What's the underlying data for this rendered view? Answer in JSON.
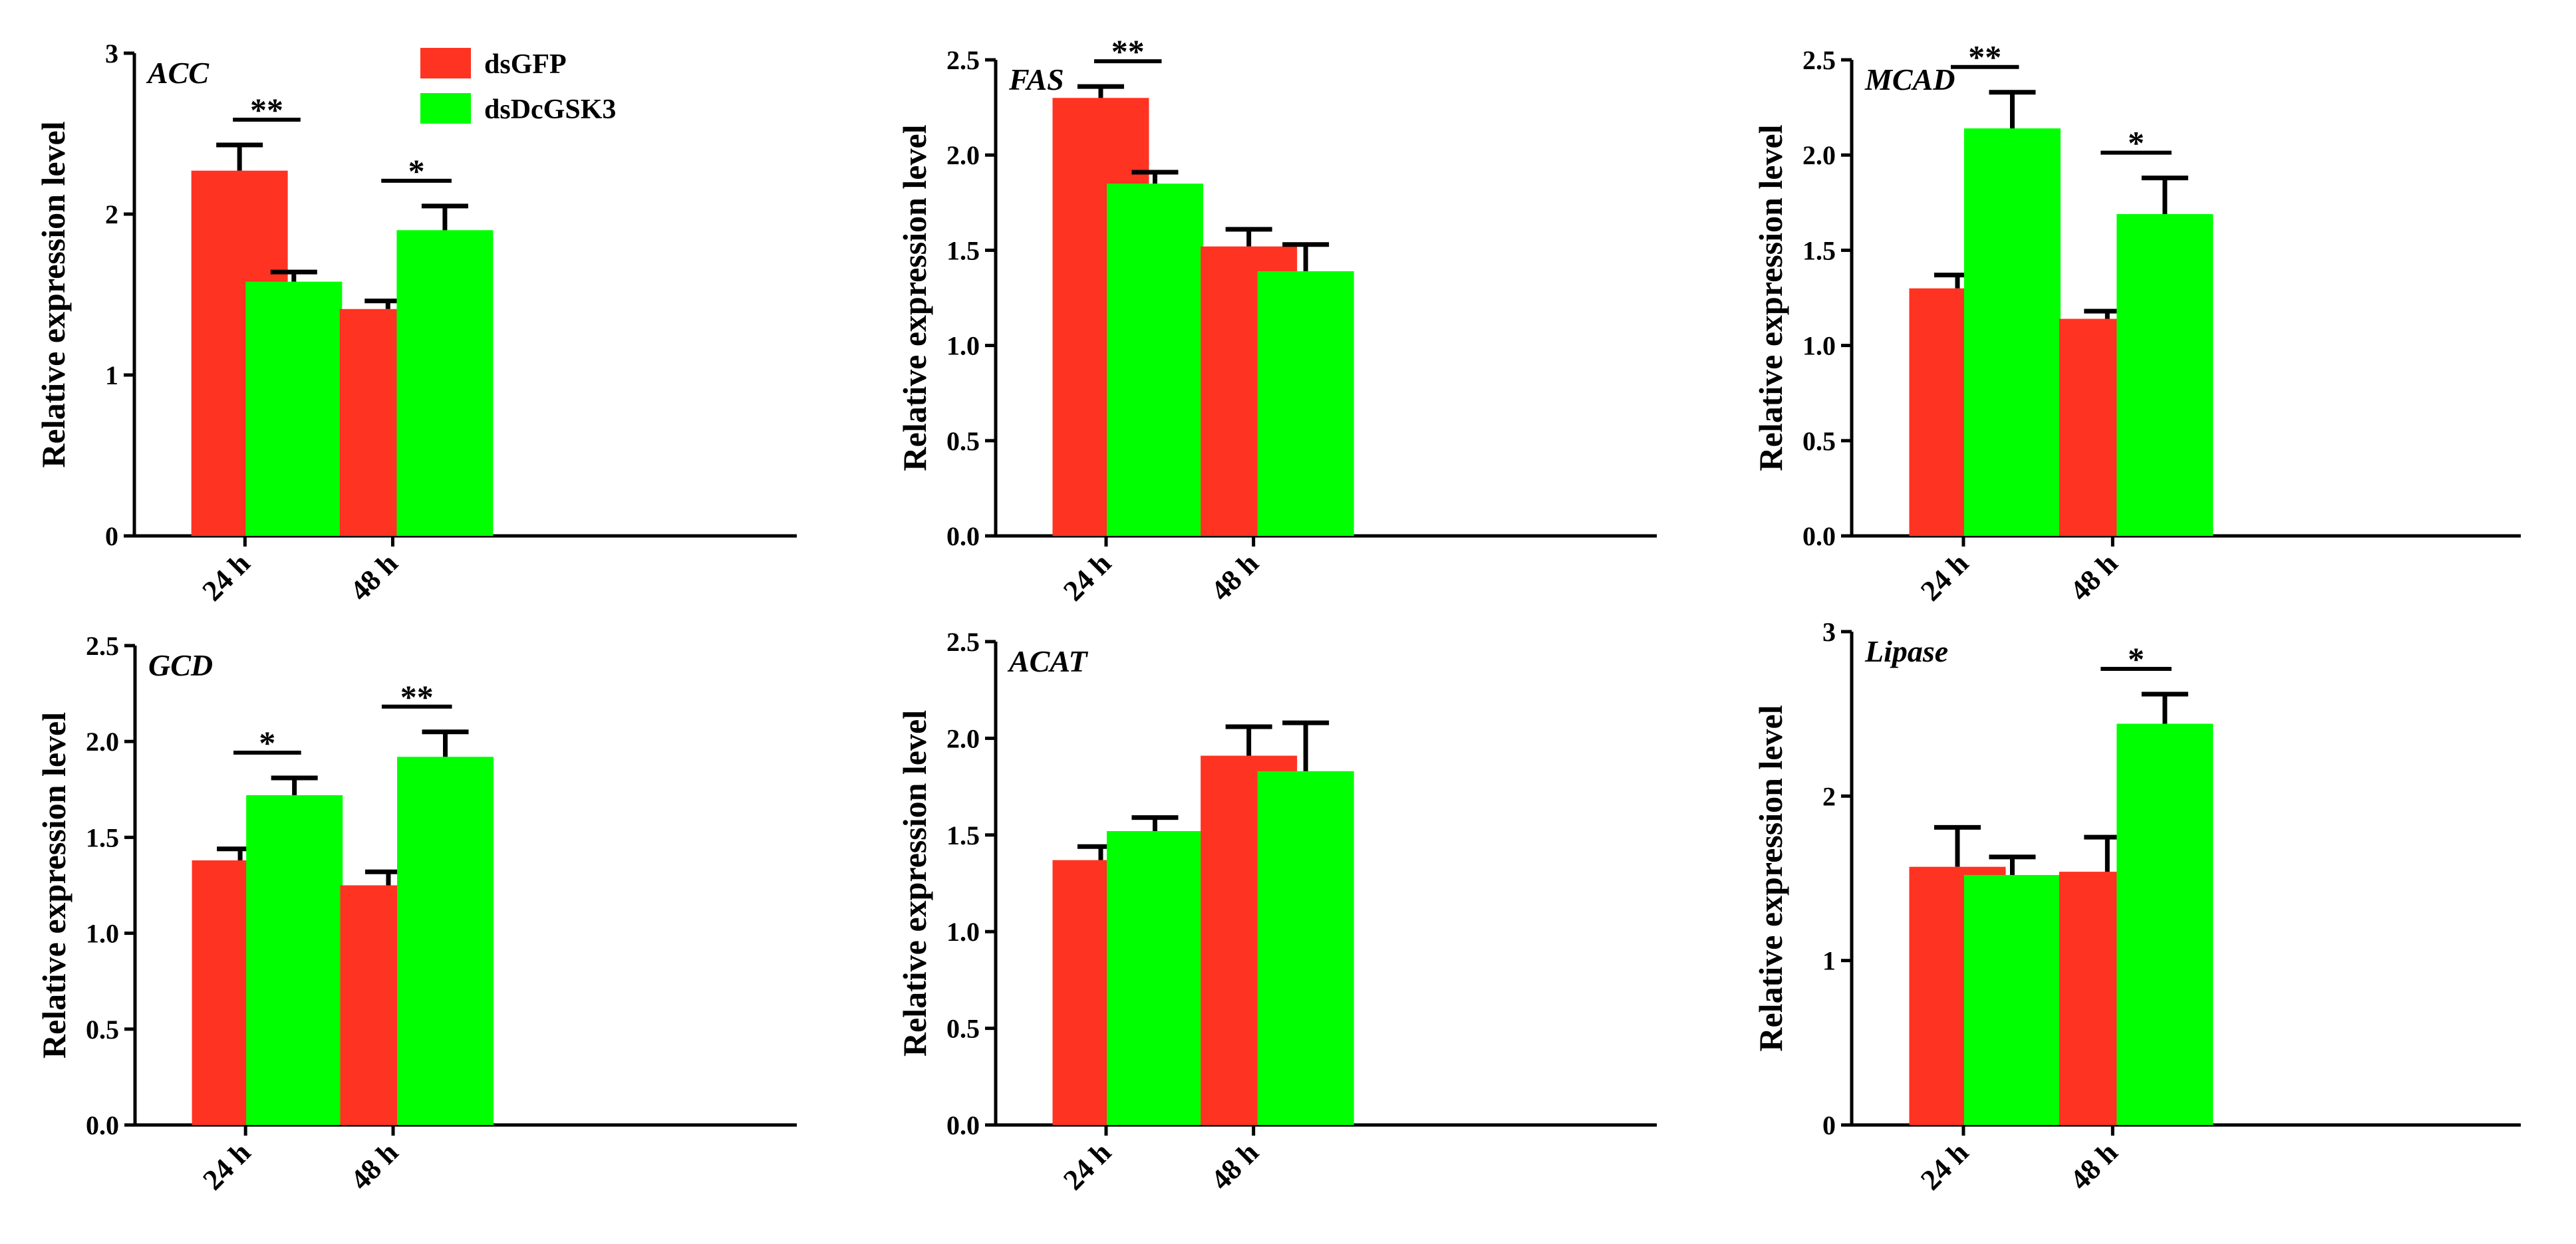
{
  "figure": {
    "legend": [
      {
        "label": "dsGFP",
        "color": "#ff3322"
      },
      {
        "label": "dsDcGSK3",
        "color": "#00ff00"
      }
    ]
  },
  "chart_data": [
    {
      "type": "bar",
      "title": "ACC",
      "ylabel": "Relative expression level",
      "categories": [
        "24 h",
        "48 h"
      ],
      "ylim": [
        0,
        3
      ],
      "yticks": [
        0,
        1,
        2,
        3
      ],
      "ytick_labels": [
        "0",
        "1",
        "2",
        "3"
      ],
      "series": [
        {
          "name": "dsGFP",
          "values": [
            2.27,
            1.41
          ],
          "errors": [
            0.16,
            0.05
          ]
        },
        {
          "name": "dsDcGSK3",
          "values": [
            1.58,
            1.9
          ],
          "errors": [
            0.06,
            0.15
          ]
        }
      ],
      "significance": [
        "**",
        "*"
      ]
    },
    {
      "type": "bar",
      "title": "FAS",
      "ylabel": "Relative expression level",
      "categories": [
        "24 h",
        "48 h"
      ],
      "ylim": [
        0,
        2.5
      ],
      "yticks": [
        0,
        0.5,
        1,
        1.5,
        2,
        2.5
      ],
      "ytick_labels": [
        "0.0",
        "0.5",
        "1.0",
        "1.5",
        "2.0",
        "2.5"
      ],
      "series": [
        {
          "name": "dsGFP",
          "values": [
            2.3,
            1.52
          ],
          "errors": [
            0.06,
            0.09
          ]
        },
        {
          "name": "dsDcGSK3",
          "values": [
            1.85,
            1.39
          ],
          "errors": [
            0.06,
            0.14
          ]
        }
      ],
      "significance": [
        "**",
        ""
      ]
    },
    {
      "type": "bar",
      "title": "MCAD",
      "ylabel": "Relative expression level",
      "categories": [
        "24 h",
        "48 h"
      ],
      "ylim": [
        0,
        2.5
      ],
      "yticks": [
        0,
        0.5,
        1,
        1.5,
        2,
        2.5
      ],
      "ytick_labels": [
        "0.0",
        "0.5",
        "1.0",
        "1.5",
        "2.0",
        "2.5"
      ],
      "series": [
        {
          "name": "dsGFP",
          "values": [
            1.3,
            1.14
          ],
          "errors": [
            0.07,
            0.04
          ]
        },
        {
          "name": "dsDcGSK3",
          "values": [
            2.14,
            1.69
          ],
          "errors": [
            0.19,
            0.19
          ]
        }
      ],
      "significance": [
        "**",
        "*"
      ]
    },
    {
      "type": "bar",
      "title": "GCD",
      "ylabel": "Relative expression level",
      "categories": [
        "24 h",
        "48 h"
      ],
      "ylim": [
        0,
        2.5
      ],
      "yticks": [
        0,
        0.5,
        1,
        1.5,
        2,
        2.5
      ],
      "ytick_labels": [
        "0.0",
        "0.5",
        "1.0",
        "1.5",
        "2.0",
        "2.5"
      ],
      "series": [
        {
          "name": "dsGFP",
          "values": [
            1.38,
            1.25
          ],
          "errors": [
            0.06,
            0.07
          ]
        },
        {
          "name": "dsDcGSK3",
          "values": [
            1.72,
            1.92
          ],
          "errors": [
            0.09,
            0.13
          ]
        }
      ],
      "significance": [
        "*",
        "**"
      ]
    },
    {
      "type": "bar",
      "title": "ACAT",
      "ylabel": "Relative expression level",
      "categories": [
        "24 h",
        "48 h"
      ],
      "ylim": [
        0,
        2.5
      ],
      "yticks": [
        0,
        0.5,
        1,
        1.5,
        2,
        2.5
      ],
      "ytick_labels": [
        "0.0",
        "0.5",
        "1.0",
        "1.5",
        "2.0",
        "2.5"
      ],
      "series": [
        {
          "name": "dsGFP",
          "values": [
            1.37,
            1.91
          ],
          "errors": [
            0.07,
            0.15
          ]
        },
        {
          "name": "dsDcGSK3",
          "values": [
            1.52,
            1.83
          ],
          "errors": [
            0.07,
            0.25
          ]
        }
      ],
      "significance": [
        "",
        ""
      ]
    },
    {
      "type": "bar",
      "title": "Lipase",
      "ylabel": "Relative expression level",
      "categories": [
        "24 h",
        "48 h"
      ],
      "ylim": [
        0,
        3
      ],
      "yticks": [
        0,
        1,
        2,
        3
      ],
      "ytick_labels": [
        "0",
        "1",
        "2",
        "3"
      ],
      "series": [
        {
          "name": "dsGFP",
          "values": [
            1.57,
            1.54
          ],
          "errors": [
            0.24,
            0.21
          ]
        },
        {
          "name": "dsDcGSK3",
          "values": [
            1.52,
            2.44
          ],
          "errors": [
            0.11,
            0.18
          ]
        }
      ],
      "significance": [
        "",
        "*"
      ]
    }
  ]
}
